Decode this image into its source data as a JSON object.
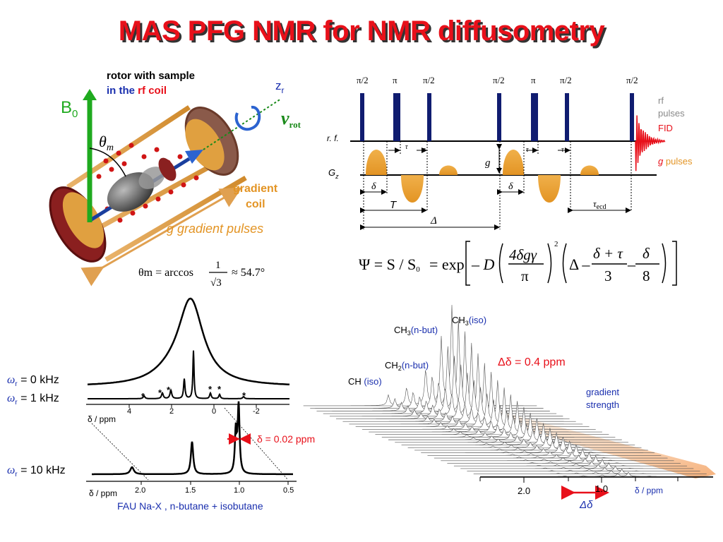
{
  "title": "MAS PFG NMR for NMR diffusometry",
  "rotor": {
    "caption_line1": "rotor with sample",
    "caption_in_the": "in the",
    "caption_rf": "rf",
    "caption_coil": "coil",
    "b0_base": "B",
    "b0_sub": "0",
    "zr_base": "z",
    "zr_sub": "r",
    "nu_base": "ν",
    "nu_sub": "rot",
    "theta_base": "θ",
    "theta_sub": "m",
    "gradient_coil_1": "gradient",
    "gradient_coil_2": "coil",
    "g_pulses_label": "g gradient pulses",
    "magic_angle_lhs": "θm = arccos",
    "magic_angle_num": "1",
    "magic_angle_den": "√3",
    "magic_angle_rhs": "≈ 54.7°"
  },
  "sequence": {
    "pulse_labels": [
      "π/2",
      "π",
      "π/2",
      "π/2",
      "π",
      "π/2",
      "π/2"
    ],
    "rf_label": "r. f.",
    "gz_base": "G",
    "gz_sub": "z",
    "legend_rf1": "rf",
    "legend_rf2": "pulses",
    "legend_fid": "FID",
    "legend_g": "g",
    "legend_gpulses": "pulses",
    "g_marker": "g",
    "tau": "τ",
    "delta": "δ",
    "T": "T",
    "Delta": "Δ",
    "tau_ecd_base": "τ",
    "tau_ecd_sub": "ecd"
  },
  "equation": {
    "lhs": "Ψ = S / S",
    "lhs_sub": "0",
    "eq_exp": "= exp",
    "minus_D": "– D",
    "frac1_num": "4δgγ",
    "frac1_den": "π",
    "power": "2",
    "delta_big": "Δ –",
    "frac2_num": "δ + τ",
    "frac2_den": "3",
    "minus": "–",
    "frac3_num": "δ",
    "frac3_den": "8"
  },
  "spectra_left": {
    "omega0_label": "ω",
    "omega0_sub": "r",
    "omega0_val": " = 0 kHz",
    "omega1_val": " = 1 kHz",
    "omega10_val": " = 10 kHz",
    "axis1_unit": "δ / ppm",
    "axis1_ticks": [
      "4",
      "2",
      "0",
      "-2"
    ],
    "axis2_unit": "δ / ppm",
    "axis2_ticks": [
      "2.0",
      "1.5",
      "1.0",
      "0.5"
    ],
    "star": "*",
    "resolution_label": "δ = 0.02 ppm",
    "sample_label": "FAU Na-X , n-butane +  isobutane"
  },
  "stack": {
    "ch3_iso_base": "CH",
    "ch3_iso_sub": "3",
    "ch3_iso_tag": "(iso)",
    "ch3_nbut_base": "CH",
    "ch3_nbut_sub": "3",
    "ch3_nbut_tag": "(n-but)",
    "ch2_base": "CH",
    "ch2_sub": "2",
    "ch2_tag": "(n-but)",
    "ch_base": "CH",
    "ch_tag": "(iso)",
    "dd_label": "Δδ = 0.4 ppm",
    "gradient_strength_1": "gradient",
    "gradient_strength_2": "strength",
    "axis_ticks": [
      "2.0",
      "1.0"
    ],
    "axis_unit": "δ / ppm",
    "dd_axis_label": "Δδ"
  }
}
